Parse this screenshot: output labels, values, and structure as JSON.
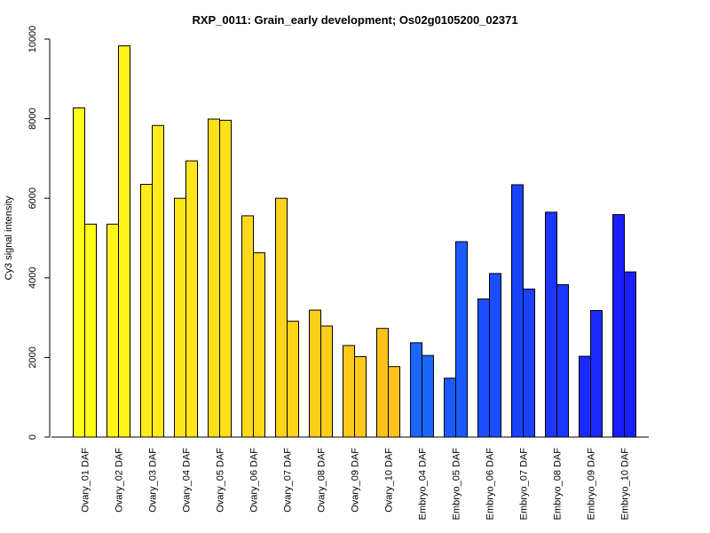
{
  "chart_data": {
    "type": "bar",
    "title": "RXP_0011: Grain_early development; Os02g0105200_02371",
    "xlabel": "",
    "ylabel": "Cy3 signal intensity",
    "ylim": [
      0,
      10000
    ],
    "yticks": [
      0,
      2000,
      4000,
      6000,
      8000,
      10000
    ],
    "grid": false,
    "legend": "none",
    "categories": [
      "Ovary_01 DAF",
      "Ovary_02 DAF",
      "Ovary_03 DAF",
      "Ovary_04 DAF",
      "Ovary_05 DAF",
      "Ovary_06 DAF",
      "Ovary_07 DAF",
      "Ovary_08 DAF",
      "Ovary_09 DAF",
      "Ovary_10 DAF",
      "Embryo_04 DAF",
      "Embryo_05 DAF",
      "Embryo_06 DAF",
      "Embryo_07 DAF",
      "Embryo_08 DAF",
      "Embryo_09 DAF",
      "Embryo_10 DAF"
    ],
    "series": [
      {
        "values": [
          8270,
          5350,
          6350,
          6000,
          7990,
          5560,
          6000,
          3190,
          2300,
          2730,
          2370,
          1480,
          3470,
          6340,
          5650,
          2030,
          5590
        ]
      },
      {
        "values": [
          5350,
          9830,
          7830,
          6940,
          7960,
          4630,
          2910,
          2790,
          2020,
          1770,
          2050,
          4910,
          4110,
          3720,
          3830,
          3180,
          4150
        ]
      }
    ],
    "category_colors": [
      "#ffff1a",
      "#fff31a",
      "#ffec1a",
      "#ffe61a",
      "#ffe01a",
      "#ffda1a",
      "#ffd41a",
      "#ffce1a",
      "#ffc81a",
      "#ffc21a",
      "#1a66ff",
      "#1a5aff",
      "#1a4eff",
      "#1a42ff",
      "#1a36ff",
      "#1a2aff",
      "#1a1eff"
    ]
  }
}
